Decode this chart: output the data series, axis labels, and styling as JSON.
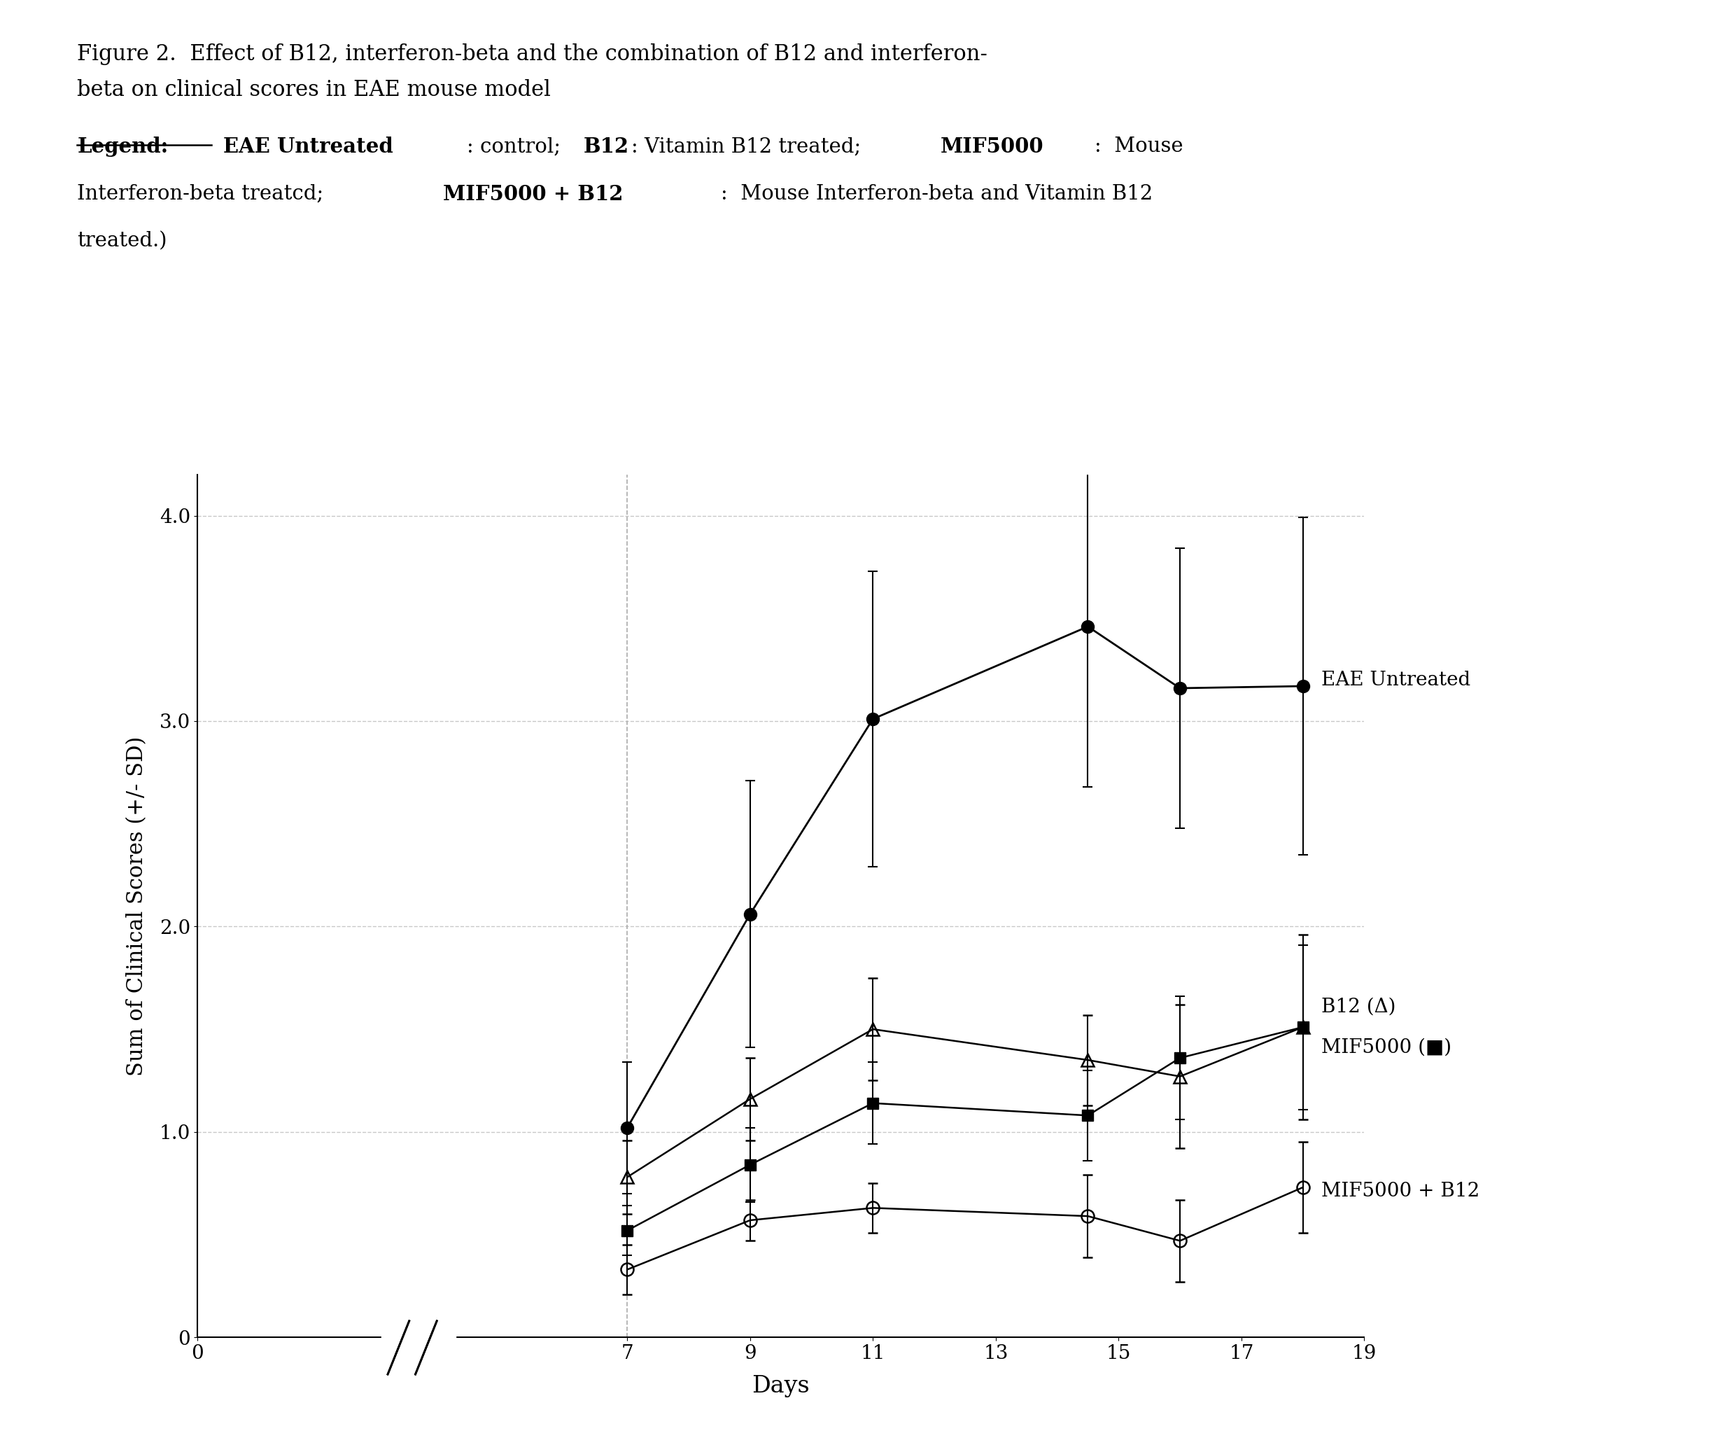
{
  "figure_title_line1": "Figure 2.  Effect of B12, interferon-beta and the combination of B12 and interferon-",
  "figure_title_line2": "beta on clinical scores in EAE mouse model",
  "xlabel": "Days",
  "ylabel": "Sum of Clinical Scores (+/- SD)",
  "xlim": [
    0,
    19
  ],
  "ylim": [
    0,
    4.2
  ],
  "yticks": [
    0,
    1.0,
    2.0,
    3.0,
    4.0
  ],
  "xticks": [
    0,
    7,
    9,
    11,
    13,
    15,
    17,
    19
  ],
  "background_color": "#ffffff",
  "eae_untreated": {
    "x": [
      7,
      9,
      11,
      14.5,
      16,
      18
    ],
    "y": [
      1.02,
      2.06,
      3.01,
      3.46,
      3.16,
      3.17
    ],
    "yerr": [
      0.32,
      0.65,
      0.72,
      0.78,
      0.68,
      0.82
    ],
    "color": "#000000",
    "marker": "o",
    "label": "EAE Untreated"
  },
  "b12": {
    "x": [
      7,
      9,
      11,
      14.5,
      16,
      18
    ],
    "y": [
      0.78,
      1.16,
      1.5,
      1.35,
      1.27,
      1.51
    ],
    "yerr": [
      0.18,
      0.2,
      0.25,
      0.22,
      0.35,
      0.45
    ],
    "color": "#000000",
    "marker": "^",
    "label": "B12 (Δ)"
  },
  "mif5000": {
    "x": [
      7,
      9,
      11,
      14.5,
      16,
      18
    ],
    "y": [
      0.52,
      0.84,
      1.14,
      1.08,
      1.36,
      1.51
    ],
    "yerr": [
      0.12,
      0.18,
      0.2,
      0.22,
      0.3,
      0.4
    ],
    "color": "#000000",
    "marker": "s",
    "label": "MIF5000 (■)"
  },
  "mif5000_b12": {
    "x": [
      7,
      9,
      11,
      14.5,
      16,
      18
    ],
    "y": [
      0.33,
      0.57,
      0.63,
      0.59,
      0.47,
      0.73
    ],
    "yerr": [
      0.12,
      0.1,
      0.12,
      0.2,
      0.2,
      0.22
    ],
    "color": "#000000",
    "marker": "o",
    "label": "MIF5000 + B12"
  },
  "grid_color": "#c8c8c8",
  "grid_linestyle": "--",
  "vline_x": 7,
  "vline_color": "#aaaaaa",
  "vline_linestyle": "--",
  "xticklabels": [
    "0",
    "7",
    "9",
    "11",
    "13",
    "15",
    "17",
    "19"
  ],
  "yticklabels": [
    "0",
    "1.0",
    "2.0",
    "3.0",
    "4.0"
  ]
}
